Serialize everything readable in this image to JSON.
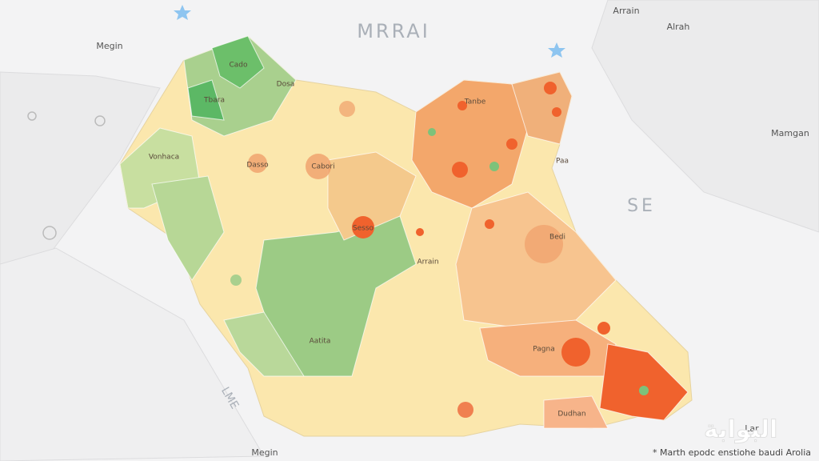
{
  "map": {
    "title": "MRRAI",
    "region_label": "SE",
    "coast_label": "LME",
    "place_labels": [
      "Megin",
      "Arrain",
      "Alrah",
      "Mamgan",
      "Megin",
      "Lar"
    ],
    "map_labels": [
      "Cado",
      "Dosa",
      "Tbara",
      "Vonhaca",
      "Dasso",
      "Cabori",
      "Sesso",
      "Arrain",
      "Aatita",
      "Pagna",
      "Dudhan",
      "Bedi",
      "Tanbe",
      "Paa"
    ],
    "footnote": "* Marth epodc enstiohe baudi Arolia",
    "watermark": "البوابة"
  }
}
